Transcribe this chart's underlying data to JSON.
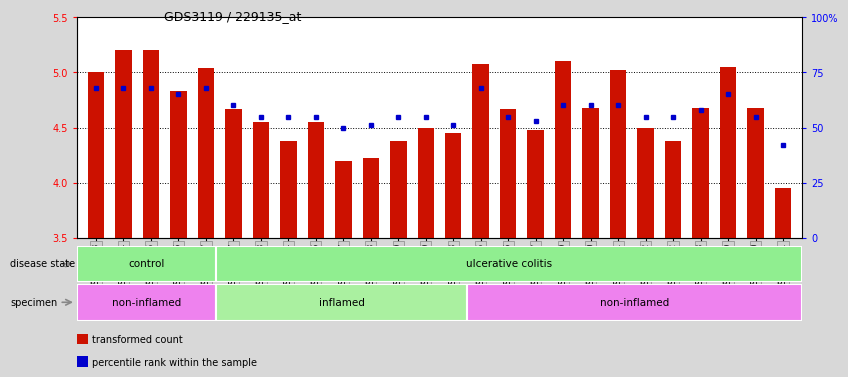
{
  "title": "GDS3119 / 229135_at",
  "samples": [
    "GSM240023",
    "GSM240024",
    "GSM240025",
    "GSM240026",
    "GSM240027",
    "GSM239617",
    "GSM239618",
    "GSM239714",
    "GSM239716",
    "GSM239717",
    "GSM239718",
    "GSM239719",
    "GSM239720",
    "GSM239723",
    "GSM239725",
    "GSM239726",
    "GSM239727",
    "GSM239729",
    "GSM239730",
    "GSM239731",
    "GSM239732",
    "GSM240022",
    "GSM240028",
    "GSM240029",
    "GSM240030",
    "GSM240031"
  ],
  "bar_heights": [
    5.0,
    5.2,
    5.2,
    4.83,
    5.04,
    4.67,
    4.55,
    4.38,
    4.55,
    4.2,
    4.22,
    4.38,
    4.5,
    4.45,
    5.08,
    4.67,
    4.48,
    5.1,
    4.68,
    5.02,
    4.5,
    4.38,
    4.68,
    5.05,
    4.68,
    3.95
  ],
  "percentile_values": [
    68,
    68,
    68,
    65,
    68,
    60,
    55,
    55,
    55,
    50,
    51,
    55,
    55,
    51,
    68,
    55,
    53,
    60,
    60,
    60,
    55,
    55,
    58,
    65,
    55,
    42
  ],
  "bar_color": "#cc1100",
  "dot_color": "#0000cc",
  "ylim_left": [
    3.5,
    5.5
  ],
  "ylim_right": [
    0,
    100
  ],
  "yticks_left": [
    3.5,
    4.0,
    4.5,
    5.0,
    5.5
  ],
  "yticks_right": [
    0,
    25,
    50,
    75,
    100
  ],
  "grid_yticks": [
    4.0,
    4.5,
    5.0
  ],
  "disease_state_groups": [
    {
      "label": "control",
      "start": 0,
      "end": 5,
      "color": "#90ee90"
    },
    {
      "label": "ulcerative colitis",
      "start": 5,
      "end": 26,
      "color": "#90ee90"
    }
  ],
  "specimen_groups": [
    {
      "label": "non-inflamed",
      "start": 0,
      "end": 5,
      "color": "#ee82ee"
    },
    {
      "label": "inflamed",
      "start": 5,
      "end": 14,
      "color": "#aaf0a0"
    },
    {
      "label": "non-inflamed",
      "start": 14,
      "end": 26,
      "color": "#ee82ee"
    }
  ],
  "legend_items": [
    {
      "label": "transformed count",
      "color": "#cc1100"
    },
    {
      "label": "percentile rank within the sample",
      "color": "#0000cc"
    }
  ],
  "fig_bg": "#d8d8d8",
  "plot_bg": "#ffffff",
  "xtick_bg": "#d0d0d0",
  "label_color": "#555555"
}
